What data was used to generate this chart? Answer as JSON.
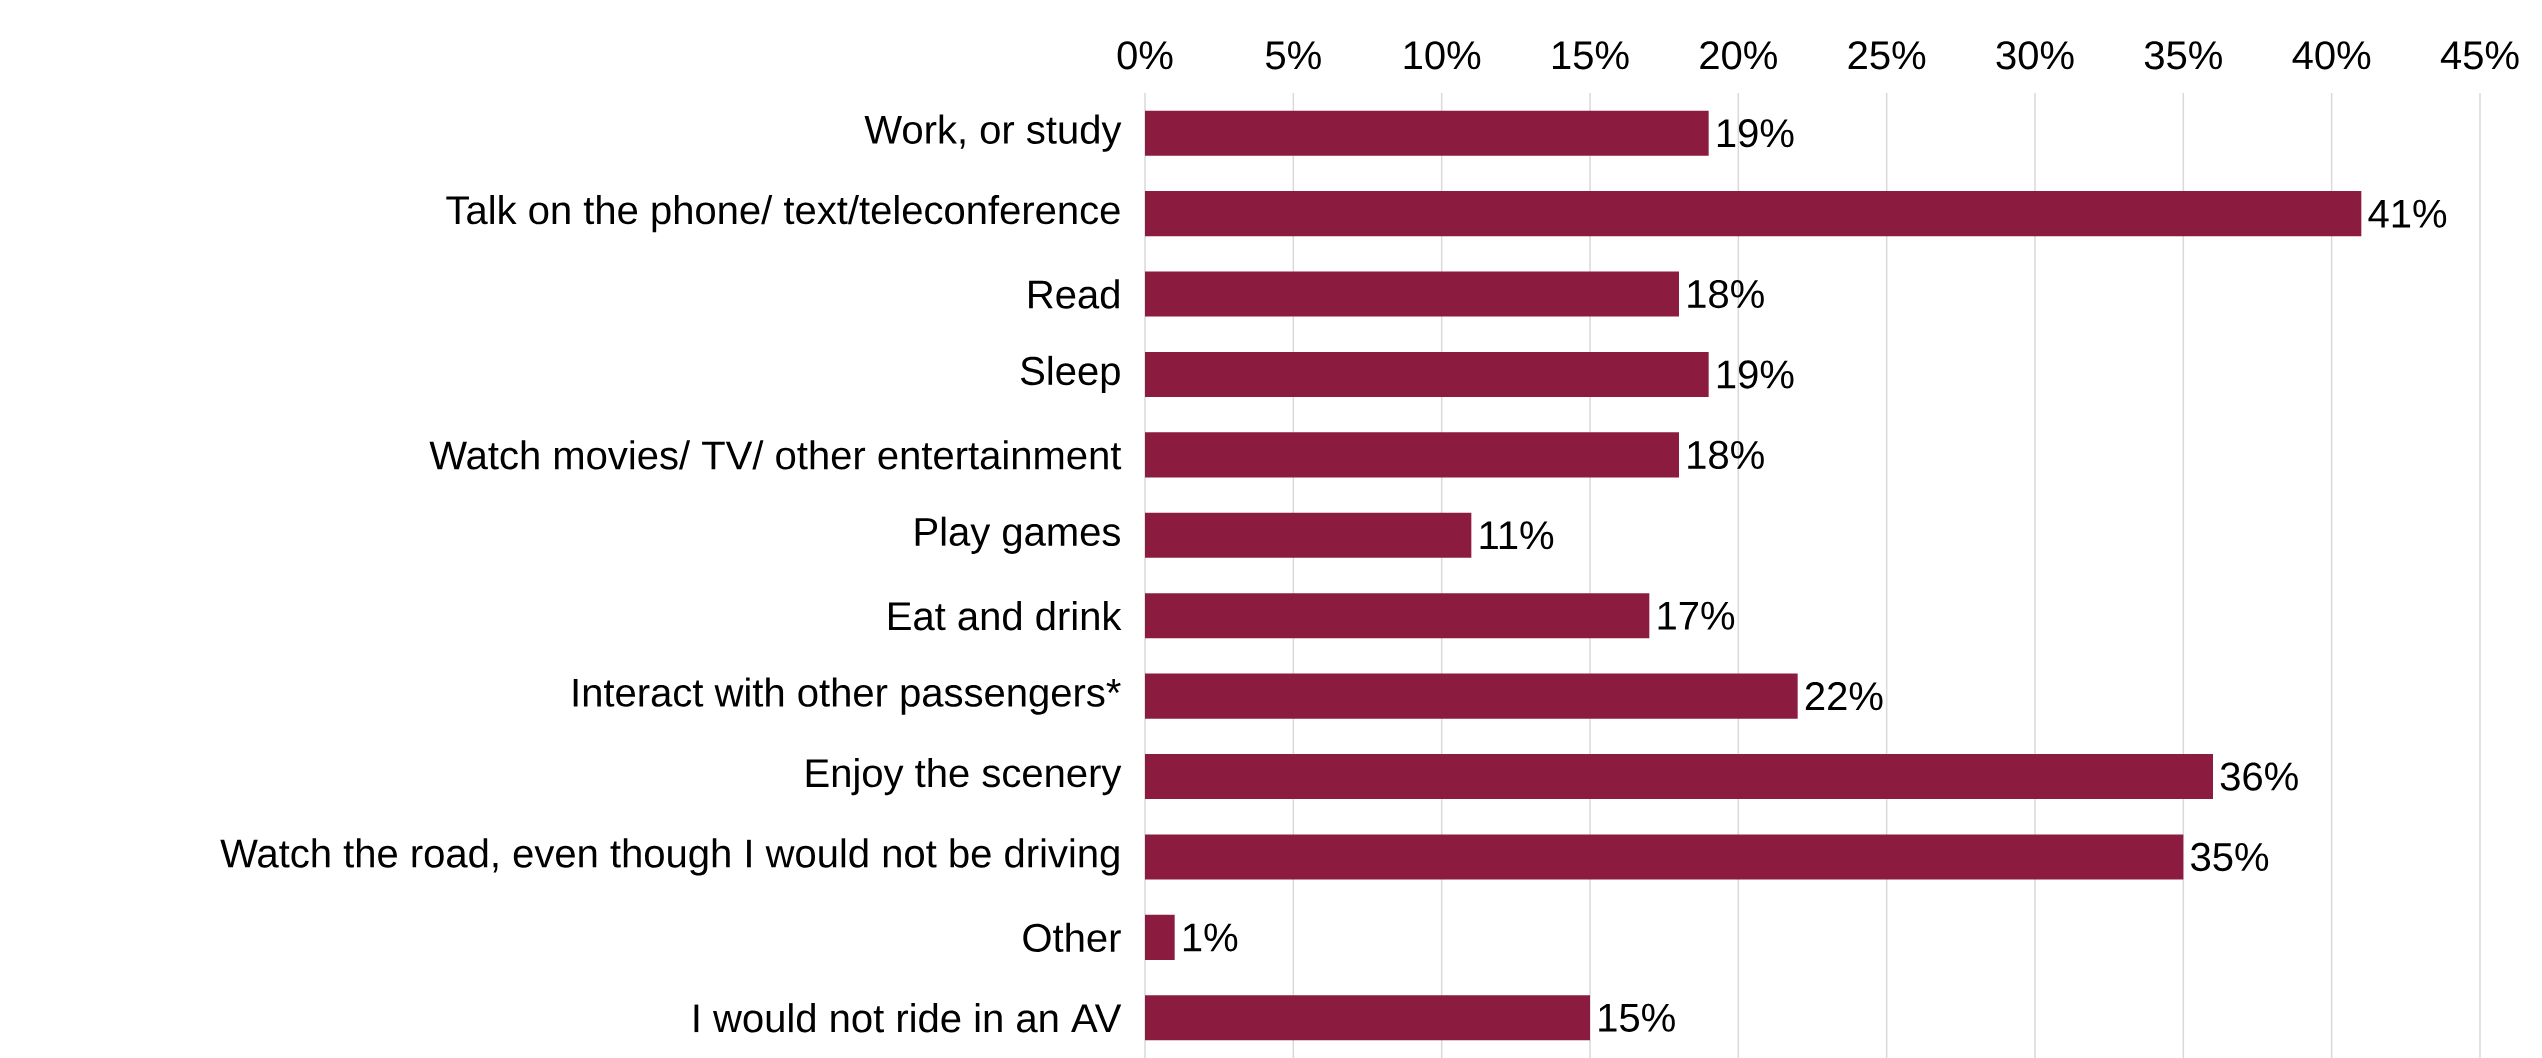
{
  "chart_data": {
    "type": "bar",
    "orientation": "horizontal",
    "categories": [
      "Work, or study",
      "Talk on the phone/ text/teleconference",
      "Read",
      "Sleep",
      "Watch movies/ TV/ other entertainment",
      "Play games",
      "Eat and drink",
      "Interact with other passengers*",
      "Enjoy the scenery",
      "Watch the road, even though I would not be driving",
      "Other",
      "I would not ride in an AV"
    ],
    "values": [
      19,
      41,
      18,
      19,
      18,
      11,
      17,
      22,
      36,
      35,
      1,
      15
    ],
    "value_labels": [
      "19%",
      "41%",
      "18%",
      "19%",
      "18%",
      "11%",
      "17%",
      "22%",
      "36%",
      "35%",
      "1%",
      "15%"
    ],
    "color": "#8b1c40",
    "xlim": [
      0,
      45
    ],
    "xticks": [
      {
        "value": 0,
        "label": "0%"
      },
      {
        "value": 5,
        "label": "5%"
      },
      {
        "value": 10,
        "label": "10%"
      },
      {
        "value": 15,
        "label": "15%"
      },
      {
        "value": 20,
        "label": "20%"
      },
      {
        "value": 25,
        "label": "25%"
      },
      {
        "value": 30,
        "label": "30%"
      },
      {
        "value": 35,
        "label": "35%"
      },
      {
        "value": 40,
        "label": "40%"
      },
      {
        "value": 45,
        "label": "45%"
      }
    ],
    "grid": "x"
  }
}
